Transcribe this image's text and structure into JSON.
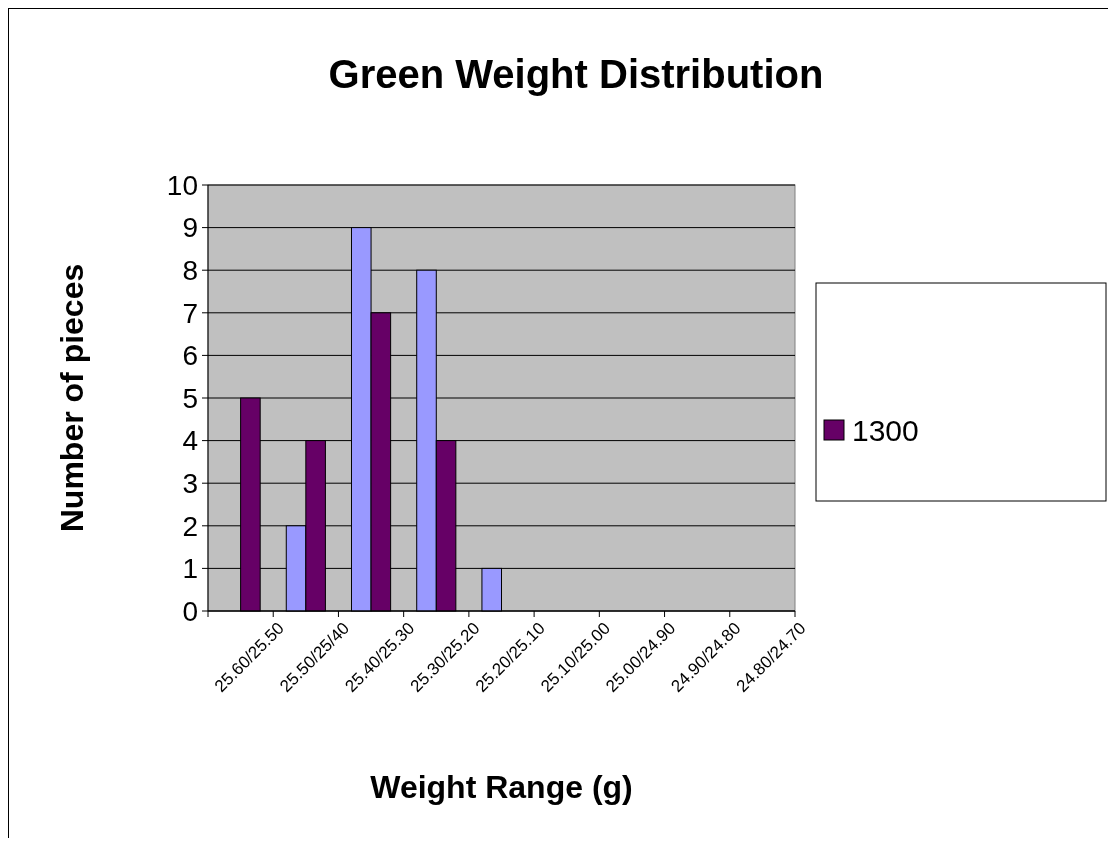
{
  "chart_data": {
    "type": "bar",
    "title": "Green Weight Distribution",
    "xlabel": "Weight Range (g)",
    "ylabel": "Number of pieces",
    "categories": [
      "25.60/25.50",
      "25.50/25/40",
      "25.40/25.30",
      "25.30/25.20",
      "25.20/25.10",
      "25.10/25.00",
      "25.00/24.90",
      "24.90/24.80",
      "24.80/24.70"
    ],
    "series": [
      {
        "color": "#9999ff",
        "values": [
          0,
          2,
          9,
          8,
          1,
          0,
          0,
          0,
          0
        ]
      },
      {
        "name": "1300",
        "color": "#660066",
        "values": [
          5,
          4,
          7,
          4,
          0,
          0,
          0,
          0,
          0
        ]
      }
    ],
    "ylim": [
      0,
      10
    ],
    "yticks": [
      0,
      1,
      2,
      3,
      4,
      5,
      6,
      7,
      8,
      9,
      10
    ],
    "grid": "y",
    "legend": "right"
  }
}
